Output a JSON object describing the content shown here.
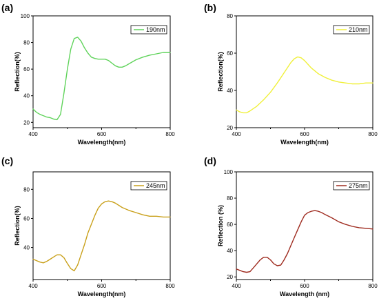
{
  "chart_data": [
    {
      "type": "line",
      "panel_label": "(a)",
      "xlabel": "Wavelength(nm)",
      "ylabel": "Reflection(%)",
      "xlim": [
        400,
        800
      ],
      "ylim": [
        16,
        100
      ],
      "xticks": [
        400,
        600,
        800
      ],
      "yticks": [
        20,
        40,
        60,
        80,
        100
      ],
      "legend_position": "top-right",
      "series": [
        {
          "name": "190nm",
          "color": "#5fd35a",
          "x": [
            400,
            410,
            420,
            430,
            440,
            450,
            460,
            470,
            480,
            490,
            500,
            510,
            520,
            530,
            540,
            550,
            560,
            570,
            580,
            590,
            600,
            610,
            620,
            630,
            640,
            650,
            660,
            670,
            680,
            690,
            700,
            720,
            740,
            760,
            780,
            800
          ],
          "y": [
            30,
            27.5,
            26,
            25,
            24,
            23.5,
            22.5,
            22,
            26,
            42,
            60,
            75,
            83,
            84,
            81,
            76,
            72,
            69,
            68,
            67.5,
            67.5,
            67.5,
            66.5,
            64.5,
            62.5,
            61.5,
            61.5,
            62.5,
            64,
            65.5,
            67,
            69,
            70.5,
            71.5,
            72.5,
            72.5
          ]
        }
      ]
    },
    {
      "type": "line",
      "panel_label": "(b)",
      "xlabel": "Wavelength(nm)",
      "ylabel": "Reflection(%)",
      "xlim": [
        400,
        800
      ],
      "ylim": [
        20,
        80
      ],
      "xticks": [
        400,
        600,
        800
      ],
      "yticks": [
        20,
        40,
        60,
        80
      ],
      "legend_position": "top-right",
      "series": [
        {
          "name": "210nm",
          "color": "#f0f03a",
          "x": [
            400,
            410,
            420,
            430,
            440,
            460,
            480,
            500,
            520,
            540,
            560,
            570,
            580,
            590,
            600,
            620,
            640,
            660,
            680,
            700,
            720,
            740,
            760,
            780,
            800
          ],
          "y": [
            29.5,
            28.5,
            28,
            28,
            29,
            31.5,
            35,
            39,
            44,
            49.5,
            55,
            57,
            58,
            57.5,
            56,
            52,
            49,
            47,
            45.5,
            44.5,
            44,
            43.5,
            43.5,
            44,
            44
          ]
        }
      ]
    },
    {
      "type": "line",
      "panel_label": "(c)",
      "xlabel": "Wavelength(nm)",
      "ylabel": "Reflection(%)",
      "xlim": [
        400,
        800
      ],
      "ylim": [
        18,
        92
      ],
      "xticks": [
        400,
        600,
        800
      ],
      "yticks": [
        40,
        60,
        80
      ],
      "legend_position": "top-right",
      "series": [
        {
          "name": "245nm",
          "color": "#c9a01a",
          "x": [
            400,
            410,
            420,
            430,
            440,
            450,
            460,
            470,
            480,
            490,
            500,
            510,
            520,
            530,
            540,
            550,
            560,
            570,
            580,
            590,
            600,
            610,
            620,
            630,
            640,
            650,
            660,
            680,
            700,
            720,
            740,
            760,
            780,
            800
          ],
          "y": [
            32,
            31,
            30,
            29.5,
            30.5,
            32,
            33.5,
            35,
            35,
            33,
            29,
            25.5,
            24,
            28,
            35,
            42,
            50,
            56,
            62,
            67,
            70,
            71.5,
            72,
            71.5,
            70.5,
            69,
            67.5,
            65.5,
            64,
            62.5,
            61.5,
            61.5,
            61,
            61
          ]
        }
      ]
    },
    {
      "type": "line",
      "panel_label": "(d)",
      "xlabel": "Wavelength (nm)",
      "ylabel": "Reflection (%)",
      "xlim": [
        400,
        800
      ],
      "ylim": [
        18,
        100
      ],
      "xticks": [
        400,
        600,
        800
      ],
      "yticks": [
        20,
        40,
        60,
        80,
        100
      ],
      "legend_position": "top-right",
      "series": [
        {
          "name": "275nm",
          "color": "#9e2a1e",
          "x": [
            400,
            410,
            420,
            430,
            440,
            450,
            460,
            470,
            480,
            490,
            500,
            510,
            520,
            530,
            540,
            550,
            560,
            570,
            580,
            590,
            600,
            610,
            620,
            630,
            640,
            650,
            660,
            680,
            700,
            720,
            740,
            760,
            780,
            800
          ],
          "y": [
            26,
            25,
            24,
            23.5,
            24,
            27,
            30,
            33,
            35,
            35,
            33,
            30,
            28.5,
            29,
            33,
            38,
            44,
            50,
            56,
            62,
            67,
            69,
            70,
            70.5,
            70,
            69,
            67.5,
            65,
            62,
            60,
            58.5,
            57.5,
            57,
            56.5
          ]
        }
      ]
    }
  ]
}
